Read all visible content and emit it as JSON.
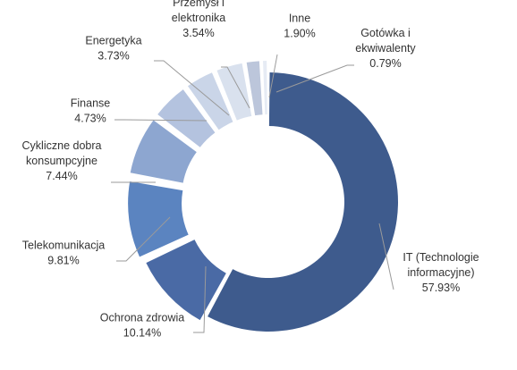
{
  "chart_data": {
    "type": "pie",
    "variant": "donut-exploded",
    "title": "",
    "start_angle_deg": 0,
    "direction": "clockwise",
    "slices": [
      {
        "label": [
          "IT (Technologie",
          "informacyjne)"
        ],
        "value": 57.93,
        "value_label": "57.93%",
        "color": "#3e5b8d"
      },
      {
        "label": [
          "Ochrona zdrowia"
        ],
        "value": 10.14,
        "value_label": "10.14%",
        "color": "#4a6aa5"
      },
      {
        "label": [
          "Telekomunikacja"
        ],
        "value": 9.81,
        "value_label": "9.81%",
        "color": "#5b84c0"
      },
      {
        "label": [
          "Cykliczne dobra",
          "konsumpcyjne"
        ],
        "value": 7.44,
        "value_label": "7.44%",
        "color": "#8da6d0"
      },
      {
        "label": [
          "Finanse"
        ],
        "value": 4.73,
        "value_label": "4.73%",
        "color": "#b4c3df"
      },
      {
        "label": [
          "Energetyka"
        ],
        "value": 3.73,
        "value_label": "3.73%",
        "color": "#cad5e8"
      },
      {
        "label": [
          "Przemysł i",
          "elektronika"
        ],
        "value": 3.54,
        "value_label": "3.54%",
        "color": "#d9e1ee"
      },
      {
        "label": [
          "Inne"
        ],
        "value": 1.9,
        "value_label": "1.90%",
        "color": "#bcc6db"
      },
      {
        "label": [
          "Gotówka i",
          "ekwiwalenty"
        ],
        "value": 0.79,
        "value_label": "0.79%",
        "color": "#e6ebf4"
      }
    ]
  }
}
